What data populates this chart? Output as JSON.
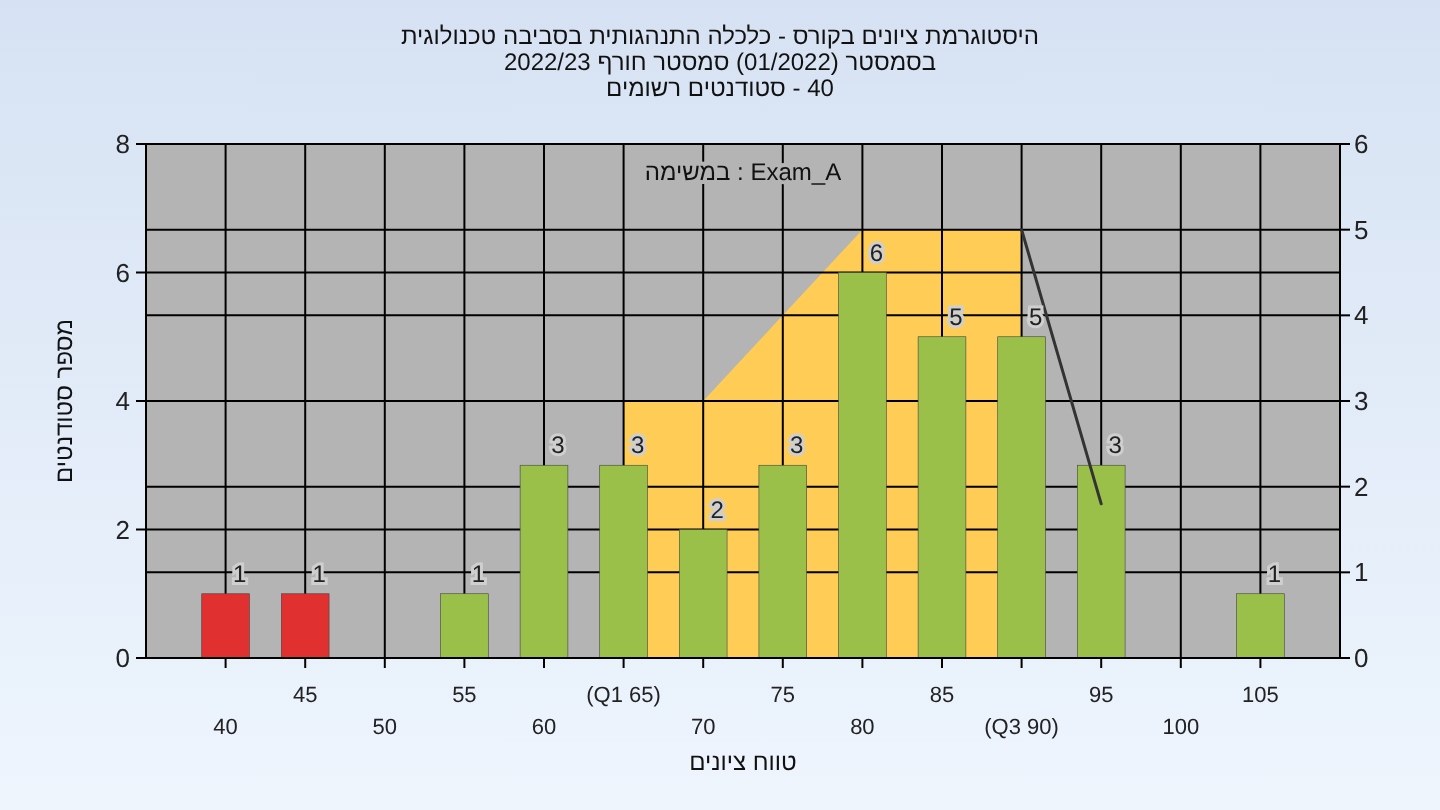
{
  "chart_data": {
    "type": "bar",
    "title": "היסטוגרמת ציונים בקורס - כלכלה התנהגותית בסביבה טכנולוגית",
    "subtitle": "בסמסטר (01/2022) סמסטר חורף 2022/23\n40 - סטודנטים רשומים",
    "xlabel": "טווח ציונים",
    "ylabel": "מספר סטודנטים",
    "annotations": [
      "במשימה : Exam_A"
    ],
    "categories": [
      "40",
      "45",
      "50",
      "55",
      "60",
      "(Q1 65)",
      "70",
      "75",
      "80",
      "85",
      "(Q3 90)",
      "95",
      "100",
      "105"
    ],
    "series": [
      {
        "type": "area",
        "color": "#ffcc55",
        "axis": "y2",
        "values": [
          null,
          null,
          null,
          null,
          null,
          3,
          3,
          4,
          5,
          5,
          5,
          null,
          null,
          null
        ]
      },
      {
        "type": "line",
        "color": "#333333",
        "axis": "y2",
        "values": [
          null,
          null,
          null,
          null,
          null,
          null,
          null,
          null,
          null,
          null,
          5,
          1.8,
          null,
          null
        ]
      },
      {
        "colors": [
          "#e03030",
          "#e03030",
          "#9bc04a",
          "#9bc04a",
          "#9bc04a",
          "#9bc04a",
          "#9bc04a",
          "#9bc04a",
          "#9bc04a",
          "#9bc04a",
          "#9bc04a",
          "#9bc04a",
          "#9bc04a",
          "#9bc04a"
        ],
        "values": [
          1,
          1,
          null,
          1,
          3,
          3,
          2,
          3,
          6,
          5,
          5,
          3,
          null,
          1
        ],
        "value_labels": [
          "1",
          "1",
          null,
          "1",
          "3",
          "3",
          "2",
          "3",
          "6",
          "5",
          "5",
          "3",
          null,
          "1"
        ]
      }
    ],
    "ylim": [
      0,
      8
    ],
    "yticks": [
      0,
      2,
      4,
      6,
      8
    ],
    "y2lim": [
      0,
      6
    ],
    "y2ticks": [
      0,
      1,
      2,
      3,
      4,
      5,
      6
    ],
    "grid": true
  }
}
